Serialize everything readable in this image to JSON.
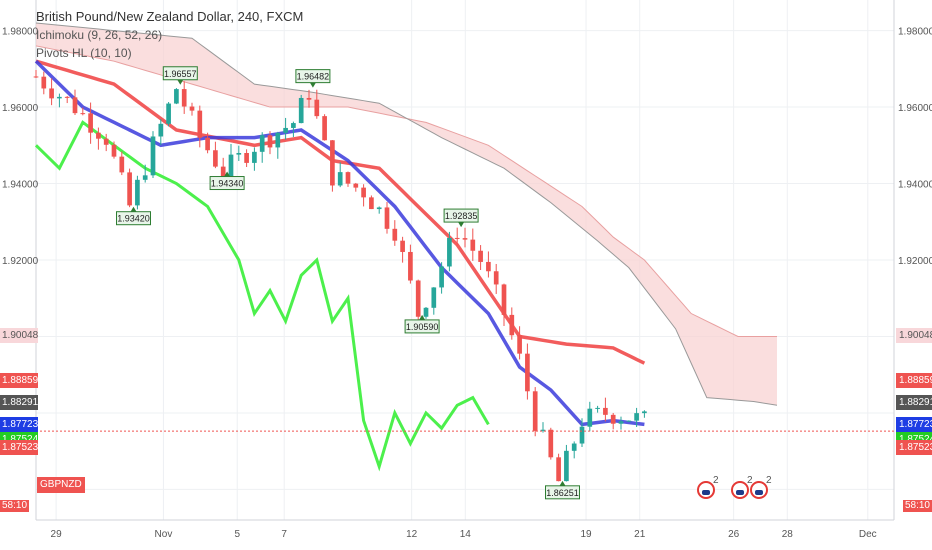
{
  "header": {
    "title": "British Pound/New Zealand Dollar, 240, FXCM",
    "indicator_1": "Ichimoku (9, 26, 52, 26)",
    "indicator_2": "Pivots HL (10, 10)"
  },
  "symbol": "GBPNZD",
  "price_tags": {
    "left": [
      {
        "label": "1.90048",
        "color": "#f8d7da",
        "text_color": "#555"
      },
      {
        "label": "1.88859",
        "color": "#ef5350",
        "text_color": "#fff"
      },
      {
        "label": "1.88291",
        "color": "#555555",
        "text_color": "#fff"
      },
      {
        "label": "1.87723",
        "color": "#1e3de4",
        "text_color": "#fff"
      },
      {
        "label": "1.87524",
        "color": "#22cc22",
        "text_color": "#fff"
      },
      {
        "label": "1.87523",
        "color": "#ef5350",
        "text_color": "#fff"
      }
    ],
    "right": [
      {
        "label": "1.90048",
        "color": "#f8d7da",
        "text_color": "#555"
      },
      {
        "label": "1.88859",
        "color": "#ef5350",
        "text_color": "#fff"
      },
      {
        "label": "1.88291",
        "color": "#555555",
        "text_color": "#fff"
      },
      {
        "label": "1.87723",
        "color": "#1e3de4",
        "text_color": "#fff"
      },
      {
        "label": "1.87524",
        "color": "#22cc22",
        "text_color": "#fff"
      },
      {
        "label": "1.87523",
        "color": "#ef5350",
        "text_color": "#fff"
      }
    ],
    "clock": "58:10"
  },
  "events": [
    {
      "count": "2"
    },
    {
      "count": "2"
    },
    {
      "count": "2"
    }
  ],
  "chart_data": {
    "type": "candlestick",
    "y_axis": {
      "ticks": [
        "1.98000",
        "1.96000",
        "1.94000",
        "1.92000"
      ],
      "ylim": [
        1.852,
        1.988
      ]
    },
    "x_axis": {
      "ticks": [
        "29",
        "Nov",
        "5",
        "7",
        "12",
        "14",
        "19",
        "21",
        "26",
        "28",
        "Dec"
      ]
    },
    "x_range": [
      0,
      110
    ],
    "current_price": 1.87523,
    "colors": {
      "up": "#26a69a",
      "down": "#ef5350",
      "conversion": "#3b3bdc",
      "base": "#f04040",
      "lagging": "#4cf04c",
      "cloud_fill": "#f8d0d0",
      "cloud_edge": "#999999",
      "grid": "#eef0f3",
      "axis_text": "#555555",
      "pivot_fill": "#e8f5e9",
      "pivot_border": "#2e7d32"
    },
    "pivots": [
      {
        "x": 18.5,
        "y": 1.96557,
        "label": "1.96557",
        "type": "high"
      },
      {
        "x": 35.5,
        "y": 1.96482,
        "label": "1.96482",
        "type": "high"
      },
      {
        "x": 12.5,
        "y": 1.9342,
        "label": "1.93420",
        "type": "low"
      },
      {
        "x": 24.5,
        "y": 1.9434,
        "label": "1.94340",
        "type": "low"
      },
      {
        "x": 54.5,
        "y": 1.92835,
        "label": "1.92835",
        "type": "high"
      },
      {
        "x": 49.5,
        "y": 1.9059,
        "label": "1.90590",
        "type": "low"
      },
      {
        "x": 67.5,
        "y": 1.86251,
        "label": "1.86251",
        "type": "low"
      }
    ]
  }
}
